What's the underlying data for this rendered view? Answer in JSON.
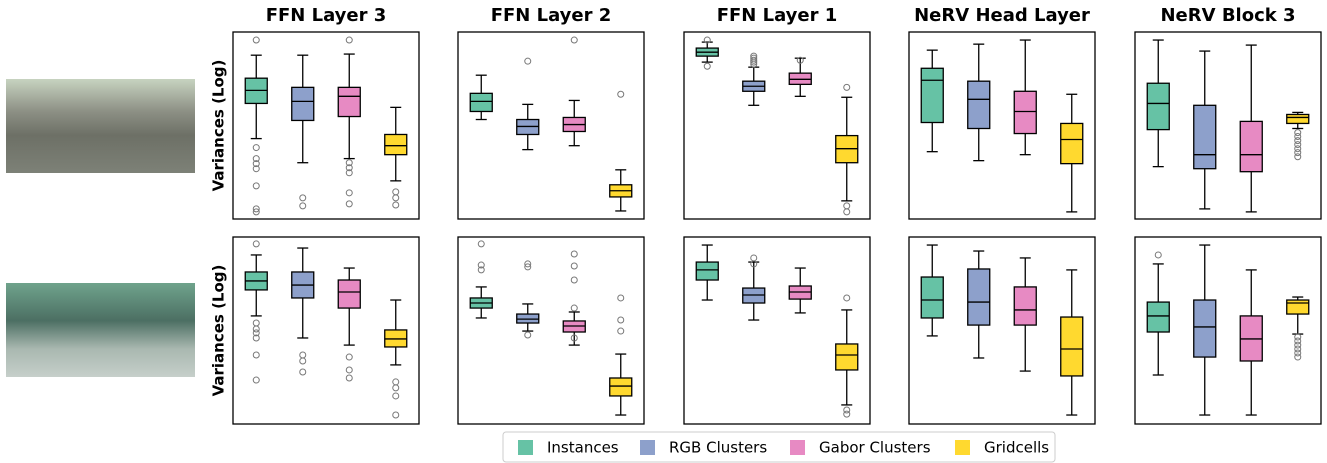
{
  "legend": [
    {
      "name": "Instances",
      "color": "#66c2a5"
    },
    {
      "name": "RGB Clusters",
      "color": "#8da0cb"
    },
    {
      "name": "Gabor Clusters",
      "color": "#e78ac3"
    },
    {
      "name": "Gridcells",
      "color": "#ffd92f"
    }
  ],
  "chart_data": [
    {
      "type": "box",
      "title": "FFN Layer 3",
      "ylabel": "Variances (Log)",
      "ylim": [
        0,
        100
      ],
      "boxes": [
        {
          "stats": [
            43.0,
            61.8,
            68.8,
            75.3,
            87.6
          ],
          "outliers": [
            95.7,
            38.2,
            32.3,
            29.6,
            26.9,
            17.7,
            5.4,
            3.8
          ]
        },
        {
          "stats": [
            30.1,
            52.7,
            62.9,
            70.4,
            87.6
          ],
          "outliers": [
            11.3,
            7.0
          ]
        },
        {
          "stats": [
            32.3,
            54.8,
            65.6,
            70.4,
            88.2
          ],
          "outliers": [
            95.7,
            30.1,
            27.4,
            24.7,
            14.0,
            8.1
          ]
        },
        {
          "stats": [
            20.4,
            34.4,
            39.2,
            45.2,
            59.7
          ],
          "outliers": [
            14.5,
            11.3,
            7.5
          ]
        }
      ]
    },
    {
      "type": "box",
      "title": "FFN Layer 2",
      "ylim": [
        0,
        100
      ],
      "boxes": [
        {
          "stats": [
            53.2,
            57.5,
            62.9,
            67.2,
            76.9
          ],
          "outliers": []
        },
        {
          "stats": [
            37.1,
            45.2,
            49.5,
            53.2,
            61.3
          ],
          "outliers": [
            84.4
          ]
        },
        {
          "stats": [
            39.2,
            46.8,
            50.5,
            54.3,
            63.4
          ],
          "outliers": [
            95.7
          ]
        },
        {
          "stats": [
            4.3,
            11.8,
            15.1,
            18.3,
            26.3
          ],
          "outliers": [
            66.7
          ]
        }
      ]
    },
    {
      "type": "box",
      "title": "FFN Layer 1",
      "ylim": [
        0,
        100
      ],
      "boxes": [
        {
          "stats": [
            83.9,
            87.1,
            89.2,
            91.4,
            94.6
          ],
          "outliers": [
            95.7,
            81.7
          ]
        },
        {
          "stats": [
            60.8,
            68.3,
            71.0,
            73.7,
            81.2
          ],
          "outliers": [
            87.1,
            86.0,
            84.9,
            83.9,
            82.8
          ]
        },
        {
          "stats": [
            65.6,
            72.0,
            74.7,
            78.0,
            86.0
          ],
          "outliers": [
            84.9
          ]
        },
        {
          "stats": [
            9.7,
            30.1,
            37.6,
            44.6,
            65.1
          ],
          "outliers": [
            70.4,
            7.0,
            3.8
          ]
        }
      ]
    },
    {
      "type": "box",
      "title": "NeRV Head Layer",
      "ylim": [
        0,
        100
      ],
      "boxes": [
        {
          "stats": [
            36.0,
            51.6,
            74.2,
            80.6,
            90.3
          ],
          "outliers": []
        },
        {
          "stats": [
            31.2,
            48.4,
            64.0,
            73.7,
            93.5
          ],
          "outliers": []
        },
        {
          "stats": [
            34.4,
            45.7,
            57.5,
            68.3,
            95.7
          ],
          "outliers": []
        },
        {
          "stats": [
            3.8,
            29.6,
            42.5,
            51.1,
            66.7
          ],
          "outliers": []
        }
      ]
    },
    {
      "type": "box",
      "title": "NeRV Block 3",
      "ylim": [
        0,
        100
      ],
      "boxes": [
        {
          "stats": [
            28.0,
            47.8,
            61.8,
            72.6,
            95.7
          ],
          "outliers": []
        },
        {
          "stats": [
            5.4,
            26.9,
            34.4,
            60.8,
            89.8
          ],
          "outliers": []
        },
        {
          "stats": [
            3.8,
            25.3,
            34.4,
            52.2,
            93.0
          ],
          "outliers": []
        },
        {
          "stats": [
            48.4,
            51.1,
            54.3,
            55.9,
            57.0
          ],
          "outliers": [
            46.2,
            44.1,
            41.9,
            39.8,
            37.6,
            35.5,
            33.3
          ]
        }
      ]
    },
    {
      "type": "box",
      "ylabel": "Variances (Log)",
      "ylim": [
        0,
        100
      ],
      "boxes": [
        {
          "stats": [
            57.8,
            71.7,
            76.5,
            81.3,
            90.4
          ],
          "outliers": [
            96.3,
            54.0,
            50.8,
            48.7,
            46.0,
            36.9,
            23.5
          ]
        },
        {
          "stats": [
            46.0,
            67.4,
            74.3,
            81.3,
            94.1
          ],
          "outliers": [
            36.9,
            33.7,
            27.8
          ]
        },
        {
          "stats": [
            42.2,
            62.0,
            70.6,
            77.0,
            83.4
          ],
          "outliers": [
            35.8,
            28.9,
            24.6
          ]
        },
        {
          "stats": [
            31.6,
            41.2,
            45.5,
            50.3,
            66.3
          ],
          "outliers": [
            22.5,
            19.3,
            15.0,
            4.8
          ]
        }
      ]
    },
    {
      "type": "box",
      "ylim": [
        0,
        100
      ],
      "boxes": [
        {
          "stats": [
            56.7,
            62.0,
            64.7,
            67.4,
            73.3
          ],
          "outliers": [
            96.3,
            85.0,
            82.4
          ]
        },
        {
          "stats": [
            49.7,
            54.0,
            56.1,
            58.8,
            64.2
          ],
          "outliers": [
            85.6,
            84.0,
            47.6
          ]
        },
        {
          "stats": [
            42.2,
            49.2,
            52.4,
            55.1,
            59.9
          ],
          "outliers": [
            90.9,
            84.5,
            77.0,
            62.0,
            46.0
          ]
        },
        {
          "stats": [
            4.8,
            15.0,
            20.3,
            24.6,
            37.4
          ],
          "outliers": [
            67.4,
            55.6,
            49.7
          ]
        }
      ]
    },
    {
      "type": "box",
      "ylim": [
        0,
        100
      ],
      "boxes": [
        {
          "stats": [
            66.3,
            77.0,
            82.4,
            86.6,
            95.7
          ],
          "outliers": []
        },
        {
          "stats": [
            55.6,
            64.7,
            69.0,
            72.7,
            86.6
          ],
          "outliers": [
            88.8,
            85.6
          ]
        },
        {
          "stats": [
            59.4,
            66.8,
            70.6,
            73.8,
            83.4
          ],
          "outliers": []
        },
        {
          "stats": [
            10.2,
            28.9,
            36.9,
            42.8,
            61.0
          ],
          "outliers": [
            67.4,
            7.5,
            5.3
          ]
        }
      ]
    },
    {
      "type": "box",
      "ylim": [
        0,
        100
      ],
      "boxes": [
        {
          "stats": [
            47.1,
            56.7,
            66.3,
            78.6,
            95.7
          ],
          "outliers": []
        },
        {
          "stats": [
            35.3,
            52.9,
            65.2,
            82.9,
            92.5
          ],
          "outliers": []
        },
        {
          "stats": [
            28.3,
            52.9,
            61.0,
            73.3,
            88.8
          ],
          "outliers": []
        },
        {
          "stats": [
            4.8,
            25.7,
            40.1,
            57.2,
            82.4
          ],
          "outliers": []
        }
      ]
    },
    {
      "type": "box",
      "ylim": [
        0,
        100
      ],
      "boxes": [
        {
          "stats": [
            26.2,
            49.2,
            57.8,
            65.2,
            85.6
          ],
          "outliers": [
            90.4
          ]
        },
        {
          "stats": [
            4.8,
            35.8,
            51.9,
            66.3,
            95.7
          ],
          "outliers": []
        },
        {
          "stats": [
            4.8,
            33.7,
            45.5,
            57.8,
            82.4
          ],
          "outliers": []
        },
        {
          "stats": [
            48.1,
            58.8,
            64.7,
            66.3,
            67.9
          ],
          "outliers": [
            46.5,
            44.4,
            42.2,
            40.1,
            38.0,
            35.8
          ]
        }
      ]
    }
  ]
}
